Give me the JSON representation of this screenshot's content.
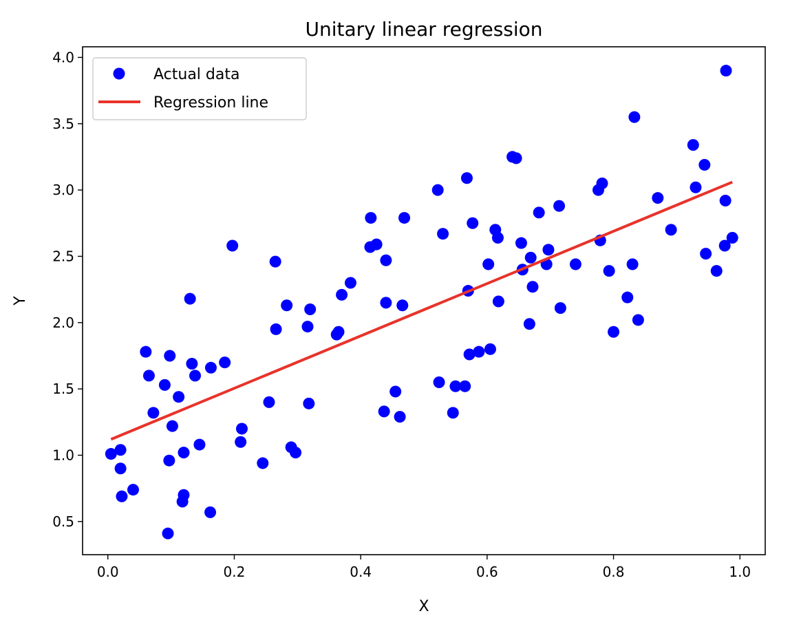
{
  "chart_data": {
    "type": "scatter",
    "title": "Unitary linear regression",
    "xlabel": "X",
    "ylabel": "Y",
    "xlim": [
      -0.04,
      1.04
    ],
    "ylim": [
      0.25,
      4.08
    ],
    "x_ticks": [
      "0.0",
      "0.2",
      "0.4",
      "0.6",
      "0.8",
      "1.0"
    ],
    "y_ticks": [
      "0.5",
      "1.0",
      "1.5",
      "2.0",
      "2.5",
      "3.0",
      "3.5",
      "4.0"
    ],
    "grid": false,
    "legend_position": "top-left",
    "series": [
      {
        "name": "Actual data",
        "kind": "scatter",
        "color": "#0000ff",
        "points": [
          [
            0.005,
            1.01
          ],
          [
            0.02,
            1.04
          ],
          [
            0.02,
            0.9
          ],
          [
            0.022,
            0.69
          ],
          [
            0.04,
            0.74
          ],
          [
            0.06,
            1.78
          ],
          [
            0.065,
            1.6
          ],
          [
            0.072,
            1.32
          ],
          [
            0.09,
            1.53
          ],
          [
            0.095,
            0.41
          ],
          [
            0.097,
            0.96
          ],
          [
            0.098,
            1.75
          ],
          [
            0.102,
            1.22
          ],
          [
            0.112,
            1.44
          ],
          [
            0.118,
            0.65
          ],
          [
            0.12,
            0.7
          ],
          [
            0.12,
            1.02
          ],
          [
            0.13,
            2.18
          ],
          [
            0.133,
            1.69
          ],
          [
            0.138,
            1.6
          ],
          [
            0.145,
            1.08
          ],
          [
            0.162,
            0.57
          ],
          [
            0.163,
            1.66
          ],
          [
            0.185,
            1.7
          ],
          [
            0.197,
            2.58
          ],
          [
            0.21,
            1.1
          ],
          [
            0.212,
            1.2
          ],
          [
            0.245,
            0.94
          ],
          [
            0.255,
            1.4
          ],
          [
            0.265,
            2.46
          ],
          [
            0.266,
            1.95
          ],
          [
            0.283,
            2.13
          ],
          [
            0.29,
            1.06
          ],
          [
            0.297,
            1.02
          ],
          [
            0.316,
            1.97
          ],
          [
            0.318,
            1.39
          ],
          [
            0.32,
            2.1
          ],
          [
            0.362,
            1.91
          ],
          [
            0.365,
            1.93
          ],
          [
            0.37,
            2.21
          ],
          [
            0.384,
            2.3
          ],
          [
            0.415,
            2.57
          ],
          [
            0.416,
            2.79
          ],
          [
            0.425,
            2.59
          ],
          [
            0.437,
            1.33
          ],
          [
            0.44,
            2.47
          ],
          [
            0.44,
            2.15
          ],
          [
            0.455,
            1.48
          ],
          [
            0.462,
            1.29
          ],
          [
            0.466,
            2.13
          ],
          [
            0.469,
            2.79
          ],
          [
            0.522,
            3.0
          ],
          [
            0.524,
            1.55
          ],
          [
            0.53,
            2.67
          ],
          [
            0.546,
            1.32
          ],
          [
            0.55,
            1.52
          ],
          [
            0.565,
            1.52
          ],
          [
            0.568,
            3.09
          ],
          [
            0.57,
            2.24
          ],
          [
            0.572,
            1.76
          ],
          [
            0.577,
            2.75
          ],
          [
            0.587,
            1.78
          ],
          [
            0.602,
            2.44
          ],
          [
            0.605,
            1.8
          ],
          [
            0.613,
            2.7
          ],
          [
            0.617,
            2.64
          ],
          [
            0.618,
            2.16
          ],
          [
            0.64,
            3.25
          ],
          [
            0.646,
            3.24
          ],
          [
            0.654,
            2.6
          ],
          [
            0.656,
            2.4
          ],
          [
            0.667,
            1.99
          ],
          [
            0.669,
            2.49
          ],
          [
            0.672,
            2.27
          ],
          [
            0.682,
            2.83
          ],
          [
            0.694,
            2.44
          ],
          [
            0.697,
            2.55
          ],
          [
            0.714,
            2.88
          ],
          [
            0.716,
            2.11
          ],
          [
            0.74,
            2.44
          ],
          [
            0.776,
            3.0
          ],
          [
            0.779,
            2.62
          ],
          [
            0.782,
            3.05
          ],
          [
            0.793,
            2.39
          ],
          [
            0.8,
            1.93
          ],
          [
            0.822,
            2.19
          ],
          [
            0.83,
            2.44
          ],
          [
            0.833,
            3.55
          ],
          [
            0.839,
            2.02
          ],
          [
            0.87,
            2.94
          ],
          [
            0.891,
            2.7
          ],
          [
            0.926,
            3.34
          ],
          [
            0.93,
            3.02
          ],
          [
            0.944,
            3.19
          ],
          [
            0.946,
            2.52
          ],
          [
            0.963,
            2.39
          ],
          [
            0.976,
            2.58
          ],
          [
            0.977,
            2.92
          ],
          [
            0.978,
            3.9
          ],
          [
            0.988,
            2.64
          ]
        ]
      },
      {
        "name": "Regression line",
        "kind": "line",
        "color": "#e8332a",
        "points": [
          [
            0.005,
            1.12
          ],
          [
            0.988,
            3.06
          ]
        ]
      }
    ]
  }
}
